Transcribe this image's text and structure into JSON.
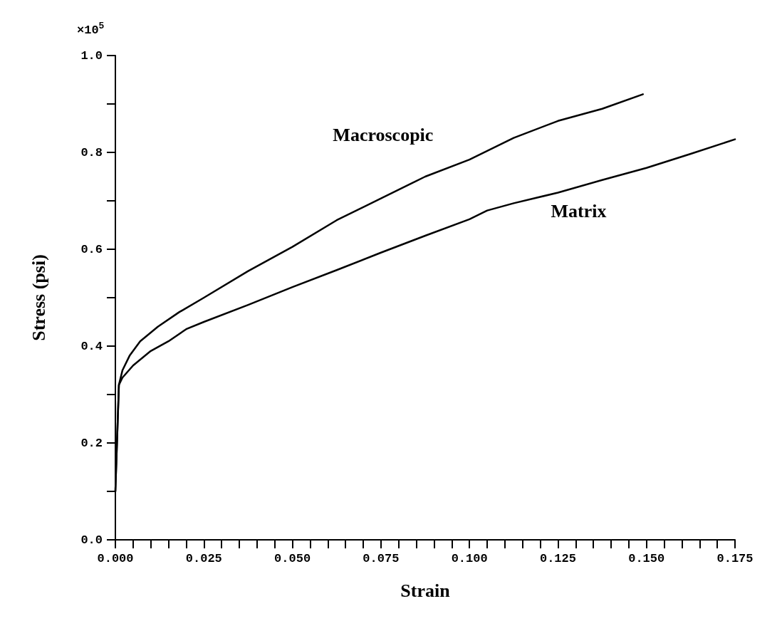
{
  "chart_data": {
    "type": "line",
    "xlabel": "Strain",
    "ylabel": "Stress (psi)",
    "annotations": [
      "×10$^{5}$"
    ],
    "xlim": [
      0,
      0.175
    ],
    "xticks": [
      {
        "value": 0,
        "label": "0.000"
      },
      {
        "value": 0.005,
        "label": null
      },
      {
        "value": 0.01,
        "label": null
      },
      {
        "value": 0.015,
        "label": null
      },
      {
        "value": 0.02,
        "label": null
      },
      {
        "value": 0.025,
        "label": "0.025"
      },
      {
        "value": 0.03,
        "label": null
      },
      {
        "value": 0.035,
        "label": null
      },
      {
        "value": 0.04,
        "label": null
      },
      {
        "value": 0.045,
        "label": null
      },
      {
        "value": 0.05,
        "label": "0.050"
      },
      {
        "value": 0.055,
        "label": null
      },
      {
        "value": 0.06,
        "label": null
      },
      {
        "value": 0.065,
        "label": null
      },
      {
        "value": 0.07,
        "label": null
      },
      {
        "value": 0.075,
        "label": "0.075"
      },
      {
        "value": 0.08,
        "label": null
      },
      {
        "value": 0.085,
        "label": null
      },
      {
        "value": 0.09,
        "label": null
      },
      {
        "value": 0.095,
        "label": null
      },
      {
        "value": 0.1,
        "label": "0.100"
      },
      {
        "value": 0.105,
        "label": null
      },
      {
        "value": 0.11,
        "label": null
      },
      {
        "value": 0.115,
        "label": null
      },
      {
        "value": 0.12,
        "label": null
      },
      {
        "value": 0.125,
        "label": "0.125"
      },
      {
        "value": 0.13,
        "label": null
      },
      {
        "value": 0.135,
        "label": null
      },
      {
        "value": 0.14,
        "label": null
      },
      {
        "value": 0.145,
        "label": null
      },
      {
        "value": 0.15,
        "label": "0.150"
      },
      {
        "value": 0.155,
        "label": null
      },
      {
        "value": 0.16,
        "label": null
      },
      {
        "value": 0.165,
        "label": null
      },
      {
        "value": 0.17,
        "label": null
      },
      {
        "value": 0.175,
        "label": "0.175"
      }
    ],
    "ylim": [
      0,
      1
    ],
    "yticks": [
      {
        "value": 0,
        "label": "0.0"
      },
      {
        "value": 0.1,
        "label": null
      },
      {
        "value": 0.2,
        "label": "0.2"
      },
      {
        "value": 0.3,
        "label": null
      },
      {
        "value": 0.4,
        "label": "0.4"
      },
      {
        "value": 0.5,
        "label": null
      },
      {
        "value": 0.6,
        "label": "0.6"
      },
      {
        "value": 0.7,
        "label": null
      },
      {
        "value": 0.8,
        "label": "0.8"
      },
      {
        "value": 0.9,
        "label": null
      },
      {
        "value": 1,
        "label": "1.0"
      }
    ],
    "grid": false,
    "legend": false,
    "marker": "none",
    "line_style": "solid",
    "series": [
      {
        "name": "Macroscopic",
        "color": "#000000",
        "x": [
          0,
          0.001,
          0.002,
          0.004,
          0.007,
          0.012,
          0.018,
          0.025,
          0.0375,
          0.05,
          0.0625,
          0.075,
          0.0875,
          0.1,
          0.1125,
          0.125,
          0.1375,
          0.149
        ],
        "values": [
          0.1,
          0.32,
          0.35,
          0.38,
          0.41,
          0.44,
          0.47,
          0.5,
          0.555,
          0.605,
          0.66,
          0.705,
          0.75,
          0.785,
          0.83,
          0.865,
          0.89,
          0.92
        ]
      },
      {
        "name": "Matrix",
        "color": "#000000",
        "x": [
          0,
          0.001,
          0.002,
          0.005,
          0.01,
          0.015,
          0.02,
          0.025,
          0.0375,
          0.05,
          0.0625,
          0.075,
          0.0875,
          0.1,
          0.105,
          0.1125,
          0.125,
          0.1375,
          0.15,
          0.1625,
          0.175
        ],
        "values": [
          0.1,
          0.32,
          0.335,
          0.36,
          0.39,
          0.41,
          0.435,
          0.45,
          0.485,
          0.522,
          0.557,
          0.593,
          0.628,
          0.662,
          0.68,
          0.695,
          0.717,
          0.743,
          0.768,
          0.797,
          0.827
        ]
      }
    ]
  }
}
